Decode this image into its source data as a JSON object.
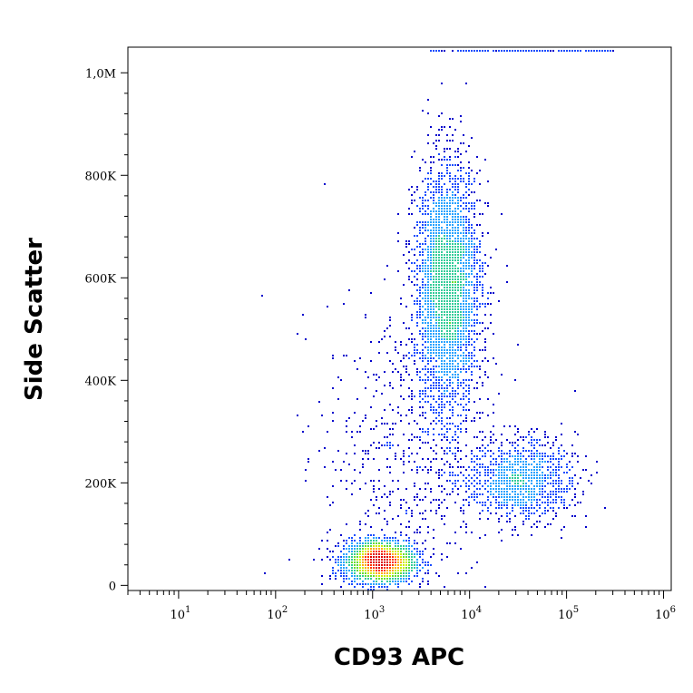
{
  "chart_data": {
    "type": "scatter",
    "subtype": "flow-cytometry-density-dot-plot",
    "xlabel": "CD93 APC",
    "ylabel": "Side Scatter",
    "x_scale": "log",
    "xlim": [
      3,
      1200000
    ],
    "ylim": [
      -10000,
      1050000
    ],
    "x_ticks": [
      {
        "value": 10,
        "base": "10",
        "exp": "1"
      },
      {
        "value": 100,
        "base": "10",
        "exp": "2"
      },
      {
        "value": 1000,
        "base": "10",
        "exp": "3"
      },
      {
        "value": 10000,
        "base": "10",
        "exp": "4"
      },
      {
        "value": 100000,
        "base": "10",
        "exp": "5"
      },
      {
        "value": 1000000,
        "base": "10",
        "exp": "6"
      }
    ],
    "y_ticks": [
      {
        "value": 0,
        "label": "0"
      },
      {
        "value": 200000,
        "label": "200K"
      },
      {
        "value": 400000,
        "label": "400K"
      },
      {
        "value": 600000,
        "label": "600K"
      },
      {
        "value": 800000,
        "label": "800K"
      },
      {
        "value": 1000000,
        "label": "1,0M"
      }
    ],
    "grid": false,
    "legend": "none",
    "density_colors": [
      "#0000cc",
      "#1a4dff",
      "#29a3ff",
      "#33cc99",
      "#66dd33",
      "#ccee00",
      "#ffaa00",
      "#ff3300",
      "#dd0000"
    ],
    "populations": [
      {
        "x_center": 1200,
        "y_center": 45000,
        "x_log_spread": 0.18,
        "y_spread": 20000,
        "count": 2400
      },
      {
        "x_center": 6000,
        "y_center": 580000,
        "x_log_spread": 0.17,
        "y_spread": 120000,
        "count": 3200
      },
      {
        "x_center": 35000,
        "y_center": 205000,
        "x_log_spread": 0.28,
        "y_spread": 40000,
        "count": 1100
      },
      {
        "x_center": 2500,
        "y_center": 250000,
        "x_log_spread": 0.45,
        "y_spread": 150000,
        "count": 700
      }
    ],
    "saturation_y": 1040000
  }
}
